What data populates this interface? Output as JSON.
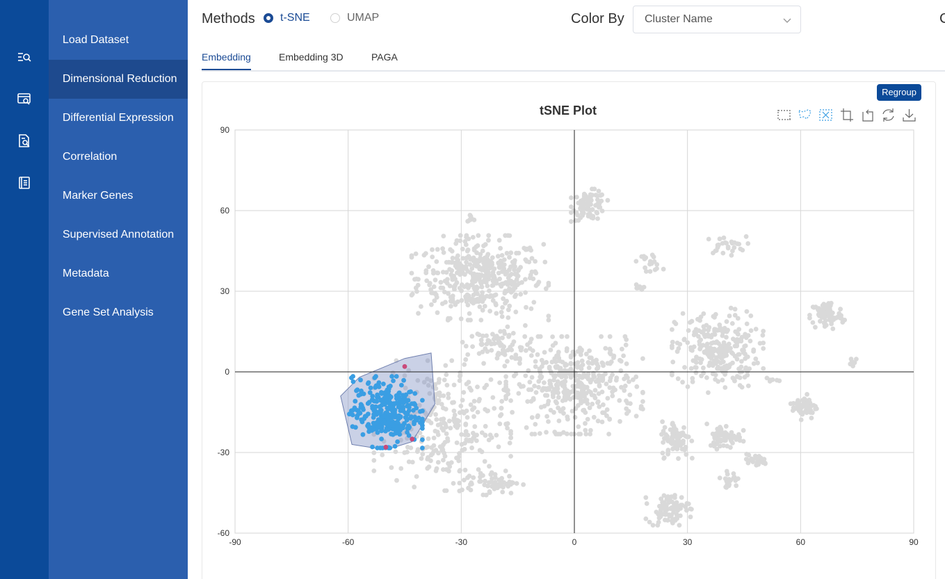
{
  "rail": {
    "icons": [
      "list-search-icon",
      "screen-search-icon",
      "document-search-icon",
      "notebook-icon"
    ]
  },
  "nav": {
    "items": [
      {
        "label": "Load Dataset"
      },
      {
        "label": "Dimensional Reduction"
      },
      {
        "label": "Differential Expression"
      },
      {
        "label": "Correlation"
      },
      {
        "label": "Marker Genes"
      },
      {
        "label": "Supervised Annotation"
      },
      {
        "label": "Metadata"
      },
      {
        "label": "Gene Set Analysis"
      }
    ],
    "active_index": 1
  },
  "controls": {
    "methods_label": "Methods",
    "method_options": [
      "t-SNE",
      "UMAP"
    ],
    "selected_method": "t-SNE",
    "color_by_label": "Color By",
    "color_by_value": "Cluster Name",
    "cut_letter": "C"
  },
  "tabs": [
    {
      "label": "Embedding"
    },
    {
      "label": "Embedding 3D"
    },
    {
      "label": "PAGA"
    }
  ],
  "active_tab": "Embedding",
  "regroup_label": "Regroup",
  "toolbox": [
    "rect-select-icon",
    "lasso-select-icon",
    "clear-selection-icon",
    "zoom-icon",
    "zoom-reset-icon",
    "restore-icon",
    "download-icon"
  ],
  "colors": {
    "accent": "#0b4a99",
    "point_default": "#d9d9d9",
    "point_selected": "#3a9ee3",
    "point_highlight": "#c94a7a",
    "lasso_fill": "#8a9ac7"
  },
  "chart_data": {
    "type": "scatter",
    "title": "tSNE Plot",
    "xlabel": "",
    "ylabel": "",
    "xlim": [
      -90,
      90
    ],
    "ylim": [
      -60,
      90
    ],
    "xticks": [
      -90,
      -60,
      -30,
      0,
      30,
      60,
      90
    ],
    "yticks": [
      -60,
      -30,
      0,
      30,
      60,
      90
    ],
    "grid": true,
    "clusters": [
      {
        "cx": -25,
        "cy": 35,
        "rx": 15,
        "ry": 13,
        "n": 420
      },
      {
        "cx": 4,
        "cy": 62,
        "rx": 4,
        "ry": 5,
        "n": 90
      },
      {
        "cx": -28,
        "cy": 57,
        "rx": 2,
        "ry": 1.5,
        "n": 8
      },
      {
        "cx": 20,
        "cy": 41,
        "rx": 3,
        "ry": 3,
        "n": 18
      },
      {
        "cx": 17,
        "cy": 31,
        "rx": 1.2,
        "ry": 1.2,
        "n": 8
      },
      {
        "cx": 40,
        "cy": 47,
        "rx": 5,
        "ry": 3,
        "n": 28
      },
      {
        "cx": 67,
        "cy": 21,
        "rx": 4,
        "ry": 5,
        "n": 80
      },
      {
        "cx": 74,
        "cy": 4,
        "rx": 1.2,
        "ry": 1.5,
        "n": 8
      },
      {
        "cx": 38,
        "cy": 8,
        "rx": 10,
        "ry": 13,
        "n": 260
      },
      {
        "cx": 0,
        "cy": -5,
        "rx": 15,
        "ry": 15,
        "n": 400
      },
      {
        "cx": -35,
        "cy": -20,
        "rx": 15,
        "ry": 20,
        "n": 280
      },
      {
        "cx": -22,
        "cy": -41,
        "rx": 7,
        "ry": 4,
        "n": 60
      },
      {
        "cx": 61,
        "cy": -13,
        "rx": 3,
        "ry": 4,
        "n": 60
      },
      {
        "cx": 27,
        "cy": -25,
        "rx": 3.5,
        "ry": 6,
        "n": 80
      },
      {
        "cx": 40,
        "cy": -24,
        "rx": 4,
        "ry": 4,
        "n": 70
      },
      {
        "cx": 41,
        "cy": -40,
        "rx": 2,
        "ry": 2.5,
        "n": 25
      },
      {
        "cx": 48,
        "cy": -33,
        "rx": 3,
        "ry": 2,
        "n": 25
      },
      {
        "cx": 25,
        "cy": -51,
        "rx": 5,
        "ry": 5,
        "n": 80
      },
      {
        "cx": 53,
        "cy": -3,
        "rx": 2,
        "ry": 1,
        "n": 6
      },
      {
        "cx": -20,
        "cy": 10,
        "rx": 8,
        "ry": 6,
        "n": 70
      }
    ],
    "selection": {
      "cluster": {
        "cx": -50,
        "cy": -15,
        "rx": 8,
        "ry": 11,
        "n": 300
      },
      "polygon": [
        [
          -62,
          -9
        ],
        [
          -57,
          -2
        ],
        [
          -45,
          5
        ],
        [
          -38,
          7
        ],
        [
          -37,
          -12
        ],
        [
          -43,
          -26
        ],
        [
          -50,
          -29
        ],
        [
          -59,
          -27
        ]
      ],
      "highlighted_points": [
        [
          -45,
          2
        ],
        [
          -50,
          -28
        ],
        [
          -43,
          -25
        ]
      ]
    }
  }
}
